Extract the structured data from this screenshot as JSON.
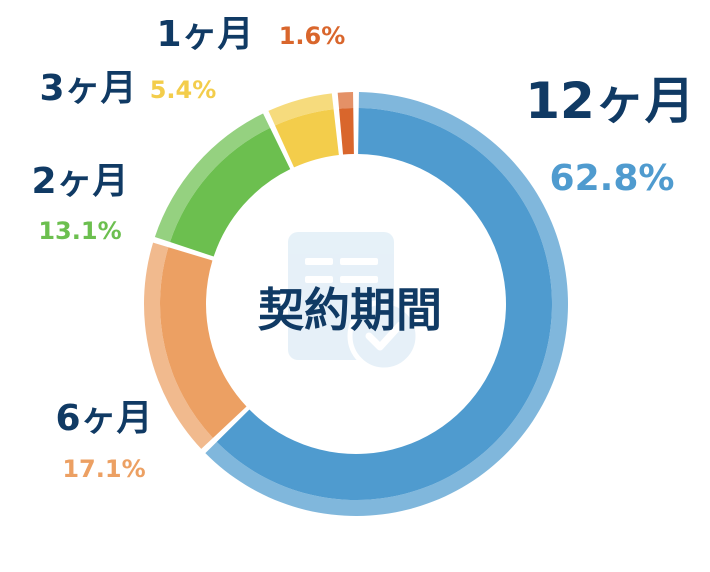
{
  "chart_data": {
    "type": "pie",
    "title": "契約期間",
    "categories": [
      "12ヶ月",
      "6ヶ月",
      "2ヶ月",
      "3ヶ月",
      "1ヶ月"
    ],
    "values": [
      62.8,
      17.1,
      13.1,
      5.4,
      1.6
    ],
    "percent_labels": [
      "62.8%",
      "17.1%",
      "13.1%",
      "5.4%",
      "1.6%"
    ],
    "colors": [
      "#4f9bcf",
      "#eca063",
      "#6cbf4f",
      "#f3cd4b",
      "#d9662c"
    ],
    "label_colors": [
      "#103a64",
      "#103a64",
      "#103a64",
      "#103a64",
      "#103a64"
    ],
    "pct_colors": [
      "#4f9bcf",
      "#eca063",
      "#6cbf4f",
      "#f3cd4b",
      "#d9662c"
    ],
    "center_icon": "document-check-icon"
  }
}
